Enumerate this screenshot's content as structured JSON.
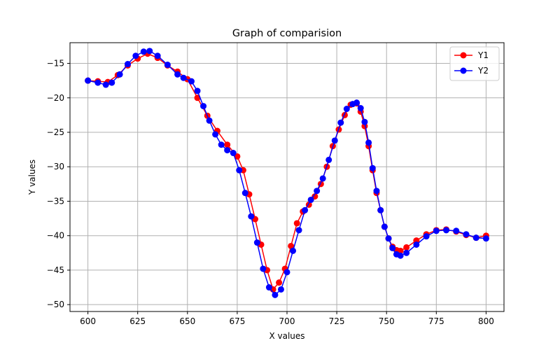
{
  "chart_data": {
    "type": "line",
    "title": "Graph of comparision",
    "xlabel": "X values",
    "ylabel": "Y values",
    "xlim": [
      591,
      809
    ],
    "ylim": [
      -51,
      -12
    ],
    "xticks": [
      600,
      625,
      650,
      675,
      700,
      725,
      750,
      775,
      800
    ],
    "yticks": [
      -15,
      -20,
      -25,
      -30,
      -35,
      -40,
      -45,
      -50
    ],
    "grid": true,
    "legend_position": "top-right",
    "colors": {
      "Y1": "#ff0000",
      "Y2": "#0000ff"
    },
    "series": [
      {
        "name": "Y1",
        "color": "#ff0000",
        "x": [
          600,
          605,
          610,
          615,
          620,
          625,
          630,
          635,
          640,
          645,
          650,
          655,
          660,
          665,
          670,
          675,
          678,
          681,
          684,
          687,
          690,
          693,
          696,
          699,
          702,
          705,
          708,
          711,
          714,
          717,
          720,
          723,
          726,
          729,
          732,
          735,
          737,
          739,
          741,
          743,
          745,
          747,
          749,
          751,
          753,
          755,
          757,
          760,
          765,
          770,
          775,
          780,
          785,
          790,
          795,
          800
        ],
        "values": [
          -17.5,
          -17.6,
          -17.7,
          -16.7,
          -15.3,
          -14.3,
          -13.6,
          -14.2,
          -15.3,
          -16.2,
          -17.3,
          -20.0,
          -22.6,
          -24.8,
          -26.8,
          -28.5,
          -30.5,
          -34.0,
          -37.6,
          -41.3,
          -45.0,
          -47.8,
          -46.8,
          -44.8,
          -41.5,
          -38.2,
          -36.5,
          -35.5,
          -34.3,
          -32.5,
          -30.0,
          -27.0,
          -24.6,
          -22.5,
          -21.0,
          -20.8,
          -22.0,
          -24.1,
          -27.0,
          -30.5,
          -33.8,
          -36.3,
          -38.7,
          -40.4,
          -41.6,
          -42.1,
          -42.2,
          -41.7,
          -40.7,
          -39.8,
          -39.2,
          -39.1,
          -39.4,
          -39.9,
          -40.3,
          -40.0
        ]
      },
      {
        "name": "Y2",
        "color": "#0000ff",
        "x": [
          600,
          605,
          609,
          612,
          616,
          620,
          624,
          628,
          631,
          635,
          640,
          645,
          648,
          652,
          655,
          658,
          661,
          664,
          667,
          670,
          673,
          676,
          679,
          682,
          685,
          688,
          691,
          694,
          697,
          700,
          703,
          706,
          709,
          712,
          715,
          718,
          721,
          724,
          727,
          730,
          733,
          735,
          737,
          739,
          741,
          743,
          745,
          747,
          749,
          751,
          753,
          755,
          757,
          760,
          765,
          770,
          775,
          780,
          785,
          790,
          795,
          800
        ],
        "values": [
          -17.5,
          -17.8,
          -18.1,
          -17.8,
          -16.6,
          -15.1,
          -13.9,
          -13.3,
          -13.2,
          -13.9,
          -15.2,
          -16.6,
          -17.1,
          -17.6,
          -19.0,
          -21.2,
          -23.3,
          -25.3,
          -26.8,
          -27.6,
          -28.0,
          -30.5,
          -33.8,
          -37.2,
          -41.0,
          -44.8,
          -47.5,
          -48.6,
          -47.8,
          -45.3,
          -42.2,
          -39.2,
          -36.3,
          -34.8,
          -33.5,
          -31.7,
          -29.0,
          -26.2,
          -23.6,
          -21.6,
          -20.9,
          -20.7,
          -21.5,
          -23.5,
          -26.5,
          -30.2,
          -33.5,
          -36.3,
          -38.7,
          -40.4,
          -41.8,
          -42.7,
          -42.9,
          -42.5,
          -41.3,
          -40.1,
          -39.3,
          -39.2,
          -39.3,
          -39.8,
          -40.3,
          -40.4
        ]
      }
    ]
  }
}
